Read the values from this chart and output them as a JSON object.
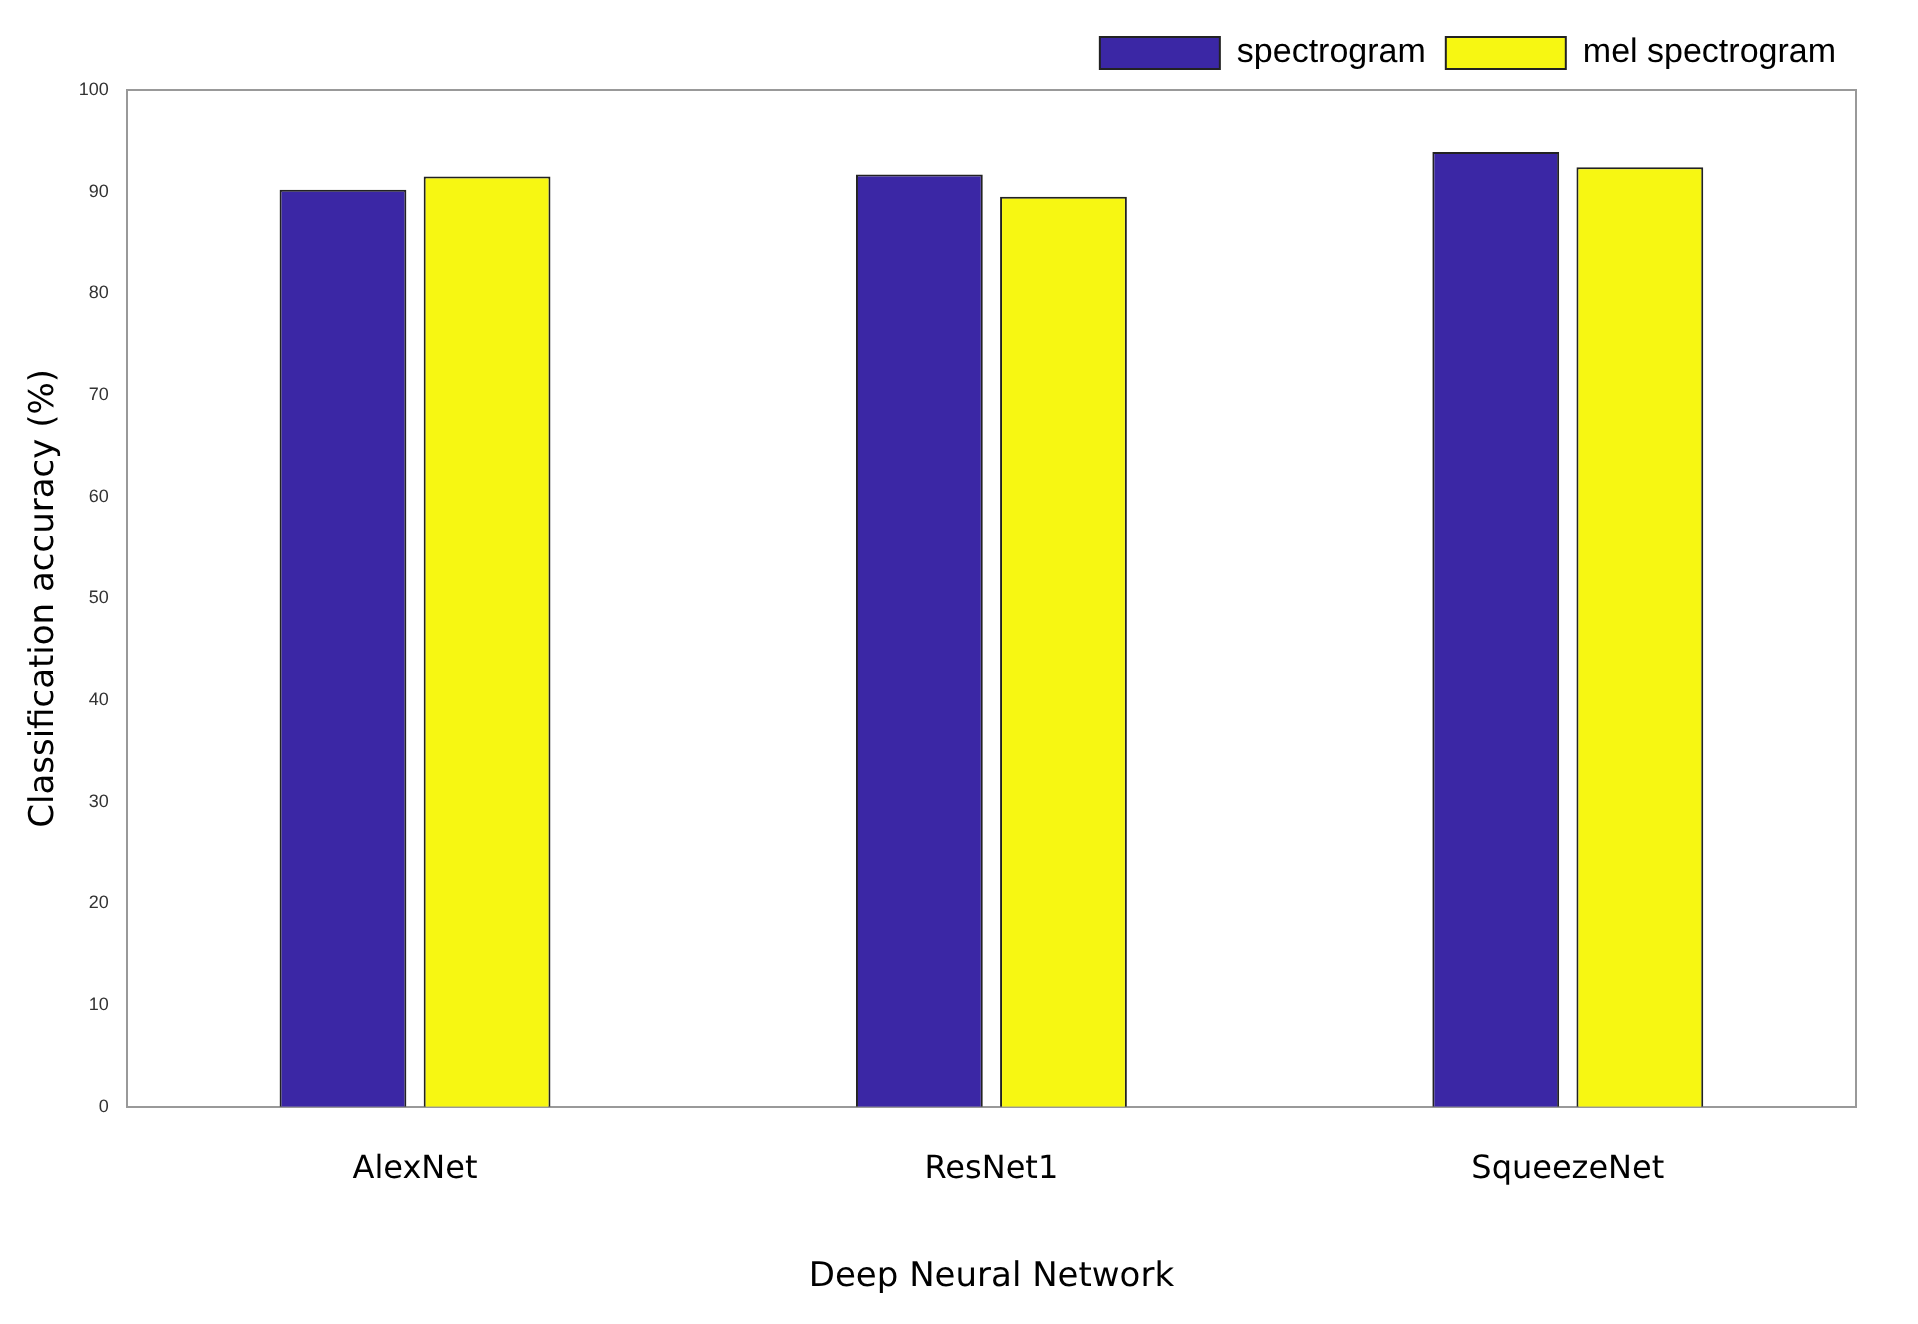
{
  "chart_data": {
    "type": "bar",
    "xlabel": "Deep Neural Network",
    "ylabel": "Classification accuracy (%)",
    "categories": [
      "AlexNet",
      "ResNet1",
      "SqueezeNet"
    ],
    "series": [
      {
        "name": "spectrogram",
        "color": "#3b27a5",
        "values": [
          90.2,
          91.7,
          93.9
        ]
      },
      {
        "name": "mel spectrogram",
        "color": "#f7f712",
        "values": [
          91.5,
          89.5,
          92.4
        ]
      }
    ],
    "ylim": [
      0,
      100
    ],
    "yticks": [
      0,
      10,
      20,
      30,
      40,
      50,
      60,
      70,
      80,
      90,
      100
    ],
    "grid": false,
    "legend": "top right"
  }
}
